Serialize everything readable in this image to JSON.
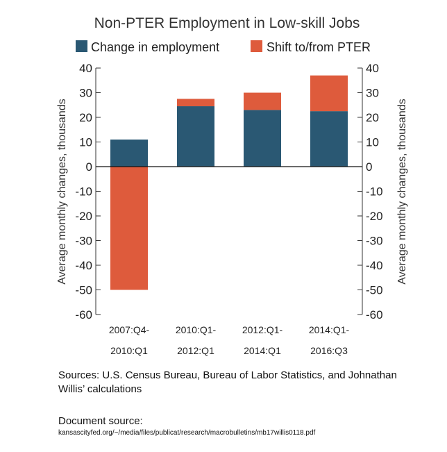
{
  "chart_data": {
    "type": "bar",
    "stacked": true,
    "title": "Non-PTER Employment in Low-skill Jobs",
    "ylabel": "Average monthly changes, thousands",
    "ylabel_right": "Average monthly changes, thousands",
    "ylim": [
      -60,
      40
    ],
    "yticks": [
      "40",
      "30",
      "20",
      "10",
      "0",
      "-10",
      "-20",
      "-30",
      "-40",
      "-50",
      "-60"
    ],
    "ytick_values": [
      40,
      30,
      20,
      10,
      0,
      -10,
      -20,
      -30,
      -40,
      -50,
      -60
    ],
    "legend_position": "top",
    "categories": [
      [
        "2007:Q4-",
        "2010:Q1"
      ],
      [
        "2010:Q1-",
        "2012:Q1"
      ],
      [
        "2012:Q1-",
        "2014:Q1"
      ],
      [
        "2014:Q1-",
        "2016:Q3"
      ]
    ],
    "series": [
      {
        "name": "Change in employment",
        "color": "#2a5873",
        "values": [
          11,
          24.5,
          23,
          22.5
        ]
      },
      {
        "name": "Shift to/from PTER",
        "color": "#de5b3c",
        "values": [
          -50,
          3,
          7,
          14.5
        ]
      }
    ]
  },
  "sources": "Sources: U.S. Census Bureau, Bureau of Labor Statistics, and Johnathan Willis’ calculations",
  "document_source": {
    "label": "Document source:",
    "url": "kansascityfed.org/~/media/files/publicat/research/macrobulletins/mb17willis0118.pdf"
  }
}
